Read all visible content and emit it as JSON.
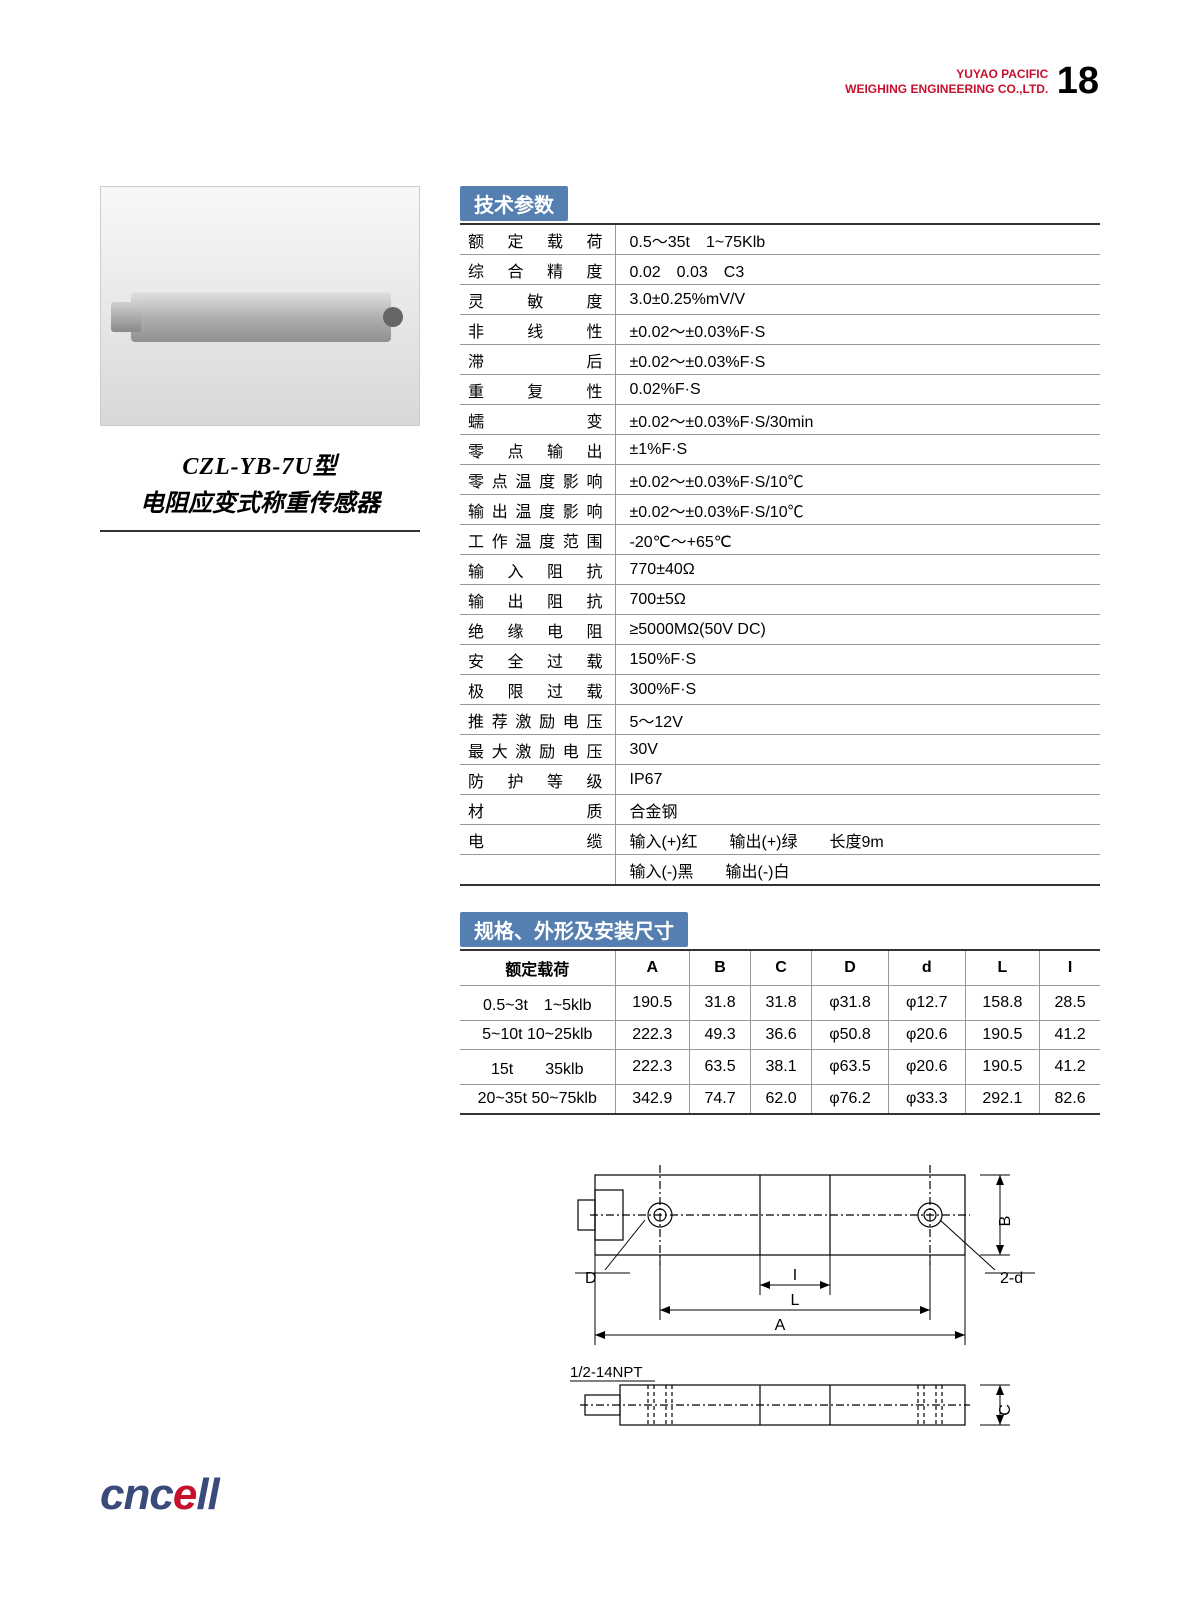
{
  "header": {
    "company_line1": "YUYAO PACIFIC",
    "company_line2": "WEIGHING ENGINEERING CO.,LTD.",
    "page_number": "18"
  },
  "product": {
    "model": "CZL-YB-7U型",
    "desc": "电阻应变式称重传感器"
  },
  "section1_title": "技术参数",
  "spec_rows": [
    {
      "label": "额 定 载 荷",
      "value": "0.5～35t　1~75Klb"
    },
    {
      "label": "综 合 精 度",
      "value": "0.02　0.03　C3"
    },
    {
      "label": "灵　敏　度",
      "value": "3.0±0.25%mV/V"
    },
    {
      "label": "非　线　性",
      "value": "±0.02～±0.03%F·S"
    },
    {
      "label": "滞　　　后",
      "value": "±0.02～±0.03%F·S"
    },
    {
      "label": "重　复　性",
      "value": "0.02%F·S"
    },
    {
      "label": "蠕　　　变",
      "value": "±0.02～±0.03%F·S/30min"
    },
    {
      "label": "零 点 输 出",
      "value": "±1%F·S"
    },
    {
      "label": "零点温度影响",
      "value": "±0.02～±0.03%F·S/10℃"
    },
    {
      "label": "输出温度影响",
      "value": "±0.02～±0.03%F·S/10℃"
    },
    {
      "label": "工作温度范围",
      "value": "-20℃～+65℃"
    },
    {
      "label": "输 入 阻 抗",
      "value": "770±40Ω"
    },
    {
      "label": "输 出 阻 抗",
      "value": "700±5Ω"
    },
    {
      "label": "绝 缘 电 阻",
      "value": "≥5000MΩ(50V DC)"
    },
    {
      "label": "安 全 过 载",
      "value": "150%F·S"
    },
    {
      "label": "极 限 过 载",
      "value": "300%F·S"
    },
    {
      "label": "推荐激励电压",
      "value": "5～12V"
    },
    {
      "label": "最大激励电压",
      "value": "30V"
    },
    {
      "label": "防 护 等 级",
      "value": "IP67"
    },
    {
      "label": "材　　　质",
      "value": "合金钢"
    },
    {
      "label": "电　　　缆",
      "value": "输入(+)红　　输出(+)绿　　长度9m"
    },
    {
      "label": "",
      "value": "输入(-)黑　　输出(-)白"
    }
  ],
  "section2_title": "规格、外形及安装尺寸",
  "dim_header": [
    "额定载荷",
    "A",
    "B",
    "C",
    "D",
    "d",
    "L",
    "I"
  ],
  "dim_rows": [
    [
      "0.5~3t　1~5klb",
      "190.5",
      "31.8",
      "31.8",
      "φ31.8",
      "φ12.7",
      "158.8",
      "28.5"
    ],
    [
      "5~10t 10~25klb",
      "222.3",
      "49.3",
      "36.6",
      "φ50.8",
      "φ20.6",
      "190.5",
      "41.2"
    ],
    [
      "15t　　35klb",
      "222.3",
      "63.5",
      "38.1",
      "φ63.5",
      "φ20.6",
      "190.5",
      "41.2"
    ],
    [
      "20~35t 50~75klb",
      "342.9",
      "74.7",
      "62.0",
      "φ76.2",
      "φ33.3",
      "292.1",
      "82.6"
    ]
  ],
  "diagram_labels": {
    "D": "D",
    "I": "I",
    "L": "L",
    "A": "A",
    "B": "B",
    "C": "C",
    "d": "2-d",
    "npt": "1/2-14NPT"
  },
  "logo": "cncell",
  "colors": {
    "accent_red": "#c8102e",
    "header_blue": "#557fb0",
    "logo_blue": "#3a4a7a",
    "border": "#999999",
    "border_heavy": "#333333"
  }
}
